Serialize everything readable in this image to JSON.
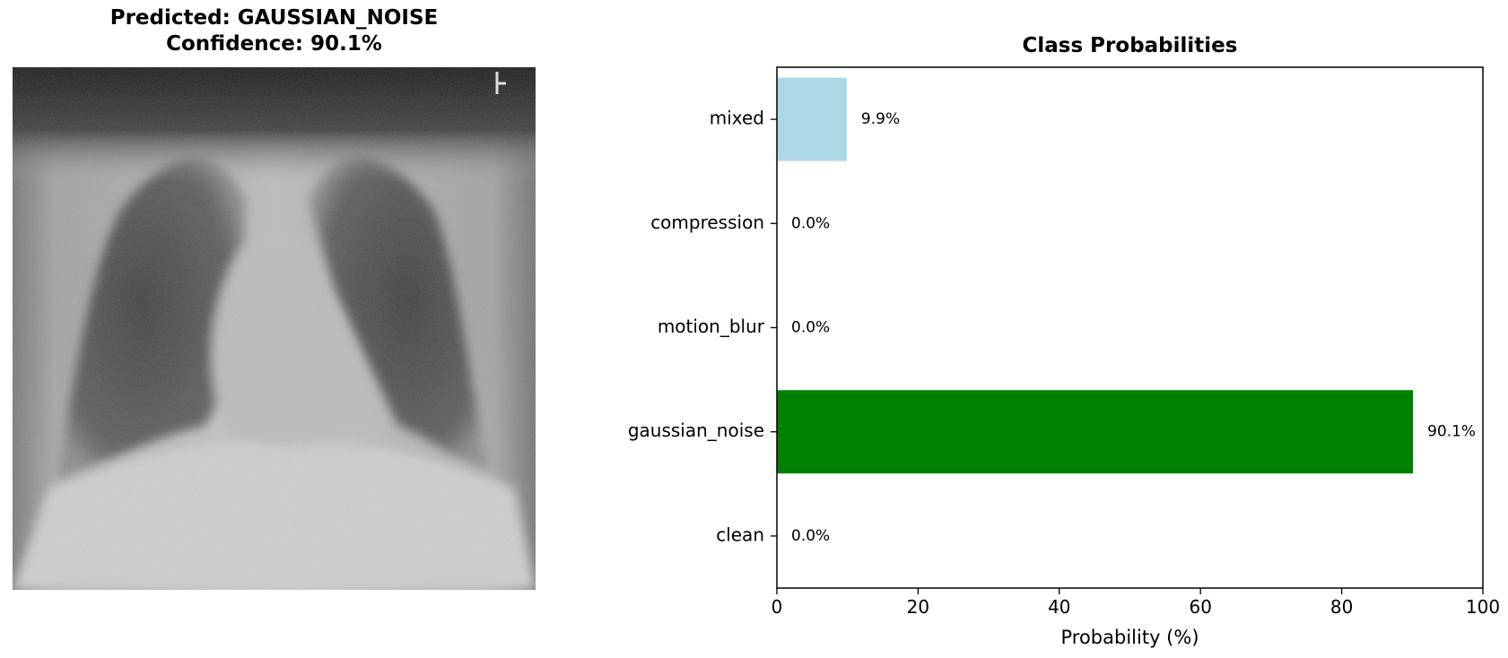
{
  "left_panel": {
    "title_line1": "Predicted: GAUSSIAN_NOISE",
    "title_line2": "Confidence: 90.1%"
  },
  "chart_data": {
    "type": "bar",
    "orientation": "horizontal",
    "title": "Class Probabilities",
    "xlabel": "Probability (%)",
    "ylabel": "",
    "xlim": [
      0,
      100
    ],
    "xticks": [
      0,
      20,
      40,
      60,
      80,
      100
    ],
    "categories": [
      "clean",
      "gaussian_noise",
      "motion_blur",
      "compression",
      "mixed"
    ],
    "values": [
      0.0,
      90.1,
      0.0,
      0.0,
      9.9
    ],
    "value_labels": [
      "0.0%",
      "90.1%",
      "0.0%",
      "0.0%",
      "9.9%"
    ],
    "colors": [
      "#add8e6",
      "#008000",
      "#add8e6",
      "#add8e6",
      "#add8e6"
    ],
    "grid": false,
    "legend": "none"
  }
}
